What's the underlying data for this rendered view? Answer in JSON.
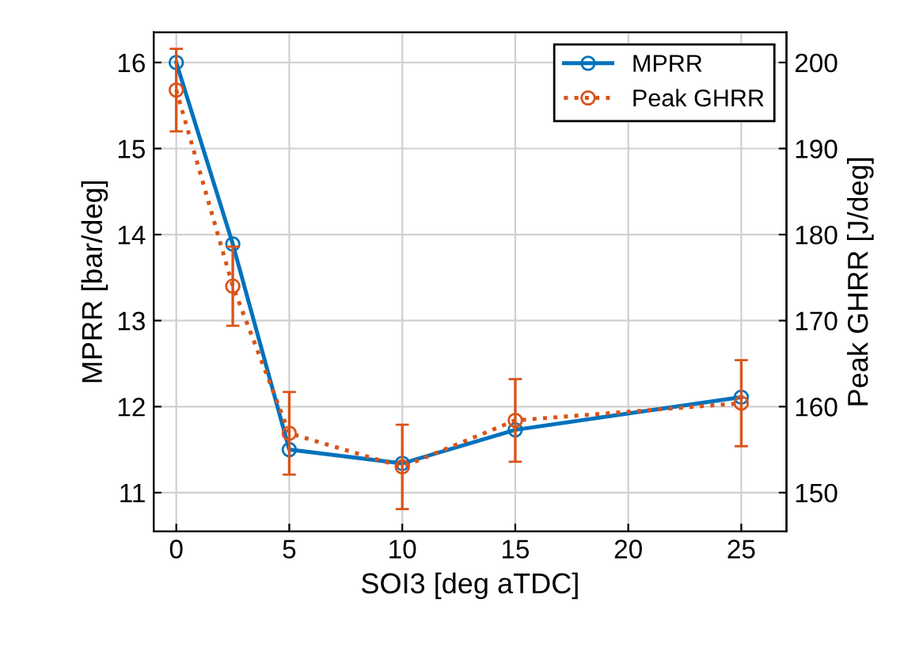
{
  "chart_data": {
    "type": "line",
    "xlabel": "SOI3 [deg aTDC]",
    "ylabel": "MPRR [bar/deg]",
    "y2label": "Peak GHRR [J/deg]",
    "x": [
      0,
      2.5,
      5,
      10,
      15,
      25
    ],
    "series": [
      {
        "name": "MPRR",
        "color": "#0072bd",
        "values": [
          16.0,
          13.89,
          11.5,
          11.34,
          11.73,
          12.11
        ],
        "line_style": "solid"
      },
      {
        "name": "Peak GHRR",
        "color": "#d95319",
        "values": [
          196.8,
          174.0,
          156.9,
          153.0,
          158.4,
          160.4
        ],
        "errors": [
          4.8,
          4.6,
          4.8,
          4.9,
          4.8,
          5
        ],
        "axis": "y2",
        "line_style": "dotted"
      }
    ],
    "xlim": [
      -1,
      27
    ],
    "xticks": [
      0,
      5,
      10,
      15,
      20,
      25
    ],
    "ylim": [
      10.55,
      16.35
    ],
    "yticks": [
      11,
      12,
      13,
      14,
      15,
      16
    ],
    "y2lim": [
      145.5,
      203.5
    ],
    "y2ticks": [
      150,
      160,
      170,
      180,
      190,
      200
    ],
    "grid": true,
    "legend": "top right",
    "marker": "circle"
  }
}
